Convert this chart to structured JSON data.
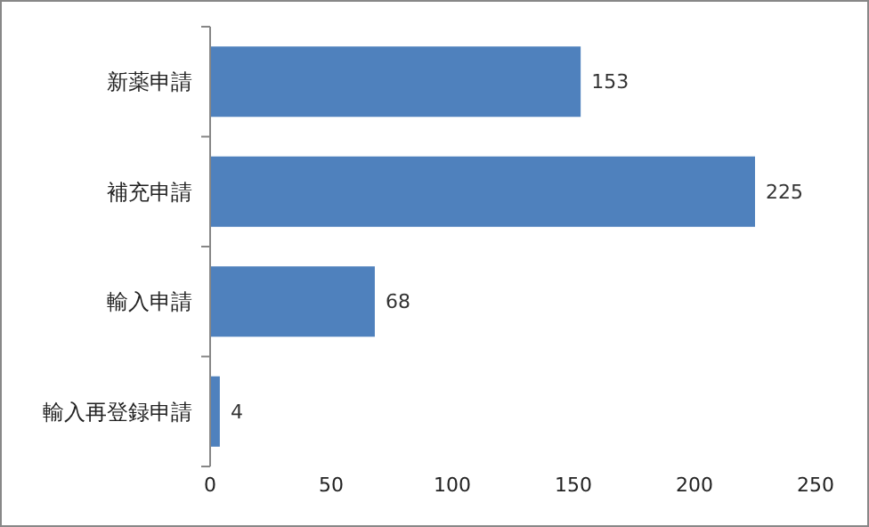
{
  "chart_data": {
    "type": "bar",
    "orientation": "horizontal",
    "categories": [
      "新薬申請",
      "補充申請",
      "輸入申請",
      "輸入再登録申請"
    ],
    "values": [
      153,
      225,
      68,
      4
    ],
    "color": "#4f81bd",
    "xlim": [
      0,
      250
    ],
    "xticks": [
      0,
      50,
      100,
      150,
      200,
      250
    ],
    "data_labels": true,
    "grid": false
  }
}
